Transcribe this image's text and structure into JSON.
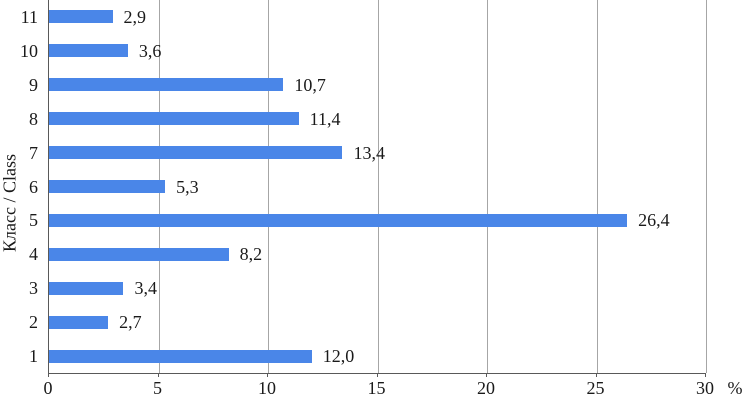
{
  "chart_data": {
    "type": "bar",
    "orientation": "horizontal",
    "title": "",
    "xlabel": "%",
    "ylabel": "Класс / Class",
    "categories": [
      "11",
      "10",
      "9",
      "8",
      "7",
      "6",
      "5",
      "4",
      "3",
      "2",
      "1"
    ],
    "values": [
      2.9,
      3.6,
      10.7,
      11.4,
      13.4,
      5.3,
      26.4,
      8.2,
      3.4,
      2.7,
      12.0
    ],
    "value_labels": [
      "2,9",
      "3,6",
      "10,7",
      "11,4",
      "13,4",
      "5,3",
      "26,4",
      "8,2",
      "3,4",
      "2,7",
      "12,0"
    ],
    "xlim": [
      0,
      30
    ],
    "xticks": [
      0,
      5,
      10,
      15,
      20,
      25,
      30
    ],
    "grid": true,
    "legend": false,
    "bar_color": "#4a86e8",
    "grid_color": "#a6a6a6",
    "axis_color": "#595959",
    "text_color": "#1a1a1a"
  }
}
